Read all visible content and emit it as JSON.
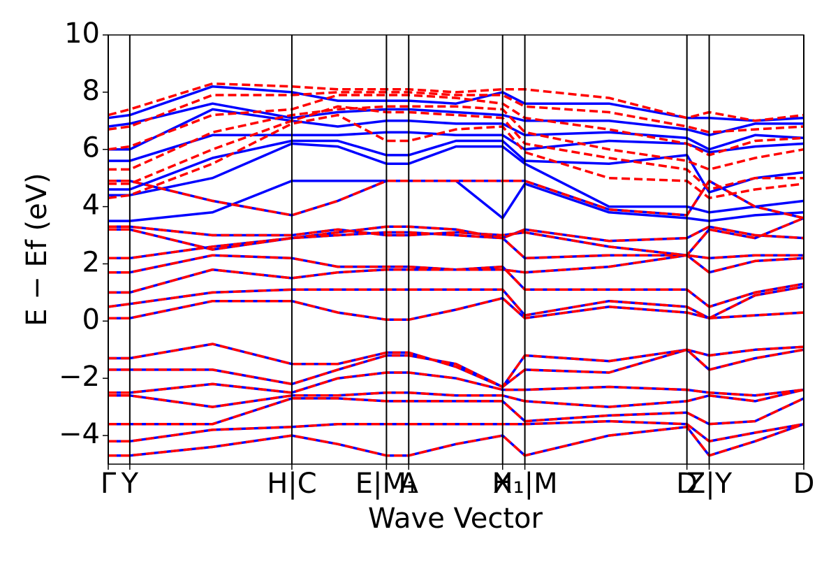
{
  "chart_data": {
    "type": "line",
    "xlabel": "Wave Vector",
    "ylabel": "E − Ef (eV)",
    "xlim": [
      0,
      10
    ],
    "ylim": [
      -5,
      10
    ],
    "yticks": [
      {
        "value": -4,
        "label": "−4"
      },
      {
        "value": -2,
        "label": "−2"
      },
      0,
      2,
      4,
      6,
      8,
      10
    ],
    "xticks": [
      {
        "value": 0,
        "label": "Γ"
      },
      {
        "value": 0.31,
        "label": "Y"
      },
      {
        "value": 2.64,
        "label": "H|C"
      },
      {
        "value": 4.0,
        "label": "E|M₁"
      },
      {
        "value": 4.32,
        "label": "A"
      },
      {
        "value": 5.67,
        "label": "X"
      },
      {
        "value": 5.99,
        "label": "H₁|M"
      },
      {
        "value": 8.32,
        "label": "D"
      },
      {
        "value": 8.64,
        "label": "Z|Y"
      },
      {
        "value": 10,
        "label": "D"
      }
    ],
    "x": [
      0,
      0.31,
      1.5,
      2.64,
      3.3,
      4.0,
      4.32,
      5.0,
      5.67,
      5.99,
      7.2,
      8.32,
      8.64,
      9.3,
      10
    ],
    "series": [
      {
        "color": "#0000ff",
        "linestyle": "solid",
        "values": [
          -4.7,
          -4.7,
          -4.4,
          -4.0,
          -4.3,
          -4.7,
          -4.7,
          -4.3,
          -4.0,
          -4.7,
          -4.0,
          -3.7,
          -4.7,
          -4.2,
          -3.6
        ]
      },
      {
        "color": "#0000ff",
        "linestyle": "solid",
        "values": [
          -4.2,
          -4.2,
          -3.8,
          -3.7,
          -3.6,
          -3.6,
          -3.6,
          -3.6,
          -3.6,
          -3.6,
          -3.5,
          -3.6,
          -4.2,
          -3.9,
          -3.6
        ]
      },
      {
        "color": "#0000ff",
        "linestyle": "solid",
        "values": [
          -3.6,
          -3.6,
          -3.6,
          -2.7,
          -2.7,
          -2.8,
          -2.8,
          -2.8,
          -2.8,
          -3.5,
          -3.3,
          -3.2,
          -3.6,
          -3.5,
          -2.7
        ]
      },
      {
        "color": "#0000ff",
        "linestyle": "solid",
        "values": [
          -2.6,
          -2.6,
          -3.0,
          -2.6,
          -2.6,
          -2.5,
          -2.5,
          -2.6,
          -2.6,
          -2.8,
          -3.0,
          -2.8,
          -2.6,
          -2.8,
          -2.4
        ]
      },
      {
        "color": "#0000ff",
        "linestyle": "solid",
        "values": [
          -2.5,
          -2.5,
          -2.2,
          -2.5,
          -2.0,
          -1.8,
          -1.8,
          -2.0,
          -2.4,
          -2.4,
          -2.3,
          -2.4,
          -2.5,
          -2.6,
          -2.4
        ]
      },
      {
        "color": "#0000ff",
        "linestyle": "solid",
        "values": [
          -1.7,
          -1.7,
          -1.7,
          -2.2,
          -1.7,
          -1.2,
          -1.2,
          -1.5,
          -2.3,
          -1.7,
          -1.8,
          -1.0,
          -1.7,
          -1.3,
          -1.0
        ]
      },
      {
        "color": "#0000ff",
        "linestyle": "solid",
        "values": [
          -1.3,
          -1.3,
          -0.8,
          -1.5,
          -1.5,
          -1.1,
          -1.1,
          -1.6,
          -2.3,
          -1.2,
          -1.4,
          -1.0,
          -1.2,
          -1.0,
          -0.9
        ]
      },
      {
        "color": "#0000ff",
        "linestyle": "solid",
        "values": [
          0.1,
          0.1,
          0.7,
          0.7,
          0.3,
          0.05,
          0.05,
          0.4,
          0.8,
          0.1,
          0.5,
          0.3,
          0.1,
          0.2,
          0.3
        ]
      },
      {
        "color": "#0000ff",
        "linestyle": "solid",
        "values": [
          0.5,
          0.6,
          1.0,
          1.1,
          1.1,
          1.1,
          1.1,
          1.1,
          1.1,
          0.2,
          0.7,
          0.5,
          0.1,
          0.9,
          1.2
        ]
      },
      {
        "color": "#0000ff",
        "linestyle": "solid",
        "values": [
          1.0,
          1.0,
          1.8,
          1.5,
          1.7,
          1.8,
          1.8,
          1.8,
          1.9,
          1.1,
          1.1,
          1.1,
          0.5,
          1.0,
          1.3
        ]
      },
      {
        "color": "#0000ff",
        "linestyle": "solid",
        "values": [
          1.7,
          1.7,
          2.3,
          2.2,
          1.9,
          1.9,
          1.9,
          1.8,
          1.8,
          1.7,
          1.9,
          2.3,
          1.7,
          2.1,
          2.2
        ]
      },
      {
        "color": "#0000ff",
        "linestyle": "solid",
        "values": [
          2.2,
          2.2,
          2.6,
          2.9,
          3.0,
          3.1,
          3.1,
          3.0,
          2.9,
          2.2,
          2.3,
          2.3,
          2.2,
          2.3,
          2.3
        ]
      },
      {
        "color": "#0000ff",
        "linestyle": "solid",
        "values": [
          3.2,
          3.2,
          2.5,
          2.9,
          3.1,
          3.3,
          3.3,
          3.2,
          2.9,
          3.2,
          2.8,
          2.9,
          3.3,
          3.0,
          2.9
        ]
      },
      {
        "color": "#0000ff",
        "linestyle": "solid",
        "values": [
          3.3,
          3.3,
          3.0,
          3.0,
          3.2,
          3.0,
          3.0,
          3.1,
          3.0,
          3.1,
          2.6,
          2.3,
          3.2,
          2.9,
          3.6
        ]
      },
      {
        "color": "#0000ff",
        "linestyle": "solid",
        "values": [
          4.9,
          4.9,
          4.2,
          3.7,
          4.2,
          4.9,
          4.9,
          4.9,
          4.9,
          4.9,
          3.9,
          3.7,
          4.9,
          4.0,
          3.6
        ]
      },
      {
        "color": "#0000ff",
        "linestyle": "solid",
        "values": [
          3.5,
          3.5,
          3.8,
          4.9,
          4.9,
          4.9,
          4.9,
          4.9,
          3.6,
          4.8,
          3.8,
          3.6,
          3.5,
          3.7,
          3.8
        ]
      },
      {
        "color": "#0000ff",
        "linestyle": "solid",
        "values": [
          4.4,
          4.4,
          5.0,
          6.2,
          6.1,
          5.5,
          5.5,
          6.1,
          6.1,
          5.5,
          4.0,
          4.0,
          3.8,
          4.0,
          4.2
        ]
      },
      {
        "color": "#0000ff",
        "linestyle": "solid",
        "values": [
          4.6,
          4.6,
          5.7,
          6.3,
          6.3,
          5.8,
          5.8,
          6.3,
          6.3,
          5.6,
          5.5,
          5.8,
          4.5,
          5.0,
          5.2
        ]
      },
      {
        "color": "#0000ff",
        "linestyle": "solid",
        "values": [
          5.6,
          5.6,
          6.5,
          6.5,
          6.5,
          6.6,
          6.6,
          6.5,
          6.5,
          6.0,
          6.3,
          6.2,
          5.9,
          6.1,
          6.2
        ]
      },
      {
        "color": "#0000ff",
        "linestyle": "solid",
        "values": [
          6.0,
          6.0,
          7.4,
          7.0,
          6.8,
          7.0,
          7.0,
          6.9,
          6.9,
          6.5,
          6.6,
          6.4,
          6.0,
          6.5,
          6.4
        ]
      },
      {
        "color": "#0000ff",
        "linestyle": "solid",
        "values": [
          6.8,
          6.9,
          7.6,
          7.1,
          7.3,
          7.4,
          7.4,
          7.3,
          7.2,
          7.0,
          7.0,
          6.7,
          6.5,
          6.9,
          6.9
        ]
      },
      {
        "color": "#0000ff",
        "linestyle": "solid",
        "values": [
          7.1,
          7.2,
          8.2,
          8.0,
          7.7,
          7.7,
          7.7,
          7.6,
          8.0,
          7.6,
          7.6,
          7.1,
          7.1,
          7.0,
          7.1
        ]
      },
      {
        "color": "#ff0000",
        "linestyle": "dashed",
        "values": [
          -4.7,
          -4.7,
          -4.4,
          -4.0,
          -4.3,
          -4.7,
          -4.7,
          -4.3,
          -4.0,
          -4.7,
          -4.0,
          -3.7,
          -4.7,
          -4.2,
          -3.6
        ]
      },
      {
        "color": "#ff0000",
        "linestyle": "dashed",
        "values": [
          -4.2,
          -4.2,
          -3.8,
          -3.7,
          -3.6,
          -3.6,
          -3.6,
          -3.6,
          -3.6,
          -3.6,
          -3.5,
          -3.6,
          -4.2,
          -3.9,
          -3.6
        ]
      },
      {
        "color": "#ff0000",
        "linestyle": "dashed",
        "values": [
          -3.6,
          -3.6,
          -3.6,
          -2.7,
          -2.7,
          -2.8,
          -2.8,
          -2.8,
          -2.8,
          -3.5,
          -3.3,
          -3.2,
          -3.6,
          -3.5,
          -2.7
        ]
      },
      {
        "color": "#ff0000",
        "linestyle": "dashed",
        "values": [
          -2.6,
          -2.6,
          -3.0,
          -2.6,
          -2.6,
          -2.5,
          -2.5,
          -2.6,
          -2.6,
          -2.8,
          -3.0,
          -2.8,
          -2.6,
          -2.8,
          -2.4
        ]
      },
      {
        "color": "#ff0000",
        "linestyle": "dashed",
        "values": [
          -2.5,
          -2.5,
          -2.2,
          -2.5,
          -2.0,
          -1.8,
          -1.8,
          -2.0,
          -2.4,
          -2.4,
          -2.3,
          -2.4,
          -2.5,
          -2.6,
          -2.4
        ]
      },
      {
        "color": "#ff0000",
        "linestyle": "dashed",
        "values": [
          -1.7,
          -1.7,
          -1.7,
          -2.2,
          -1.7,
          -1.2,
          -1.2,
          -1.5,
          -2.3,
          -1.7,
          -1.8,
          -1.0,
          -1.7,
          -1.3,
          -1.0
        ]
      },
      {
        "color": "#ff0000",
        "linestyle": "dashed",
        "values": [
          -1.3,
          -1.3,
          -0.8,
          -1.5,
          -1.5,
          -1.1,
          -1.1,
          -1.6,
          -2.3,
          -1.2,
          -1.4,
          -1.0,
          -1.2,
          -1.0,
          -0.9
        ]
      },
      {
        "color": "#ff0000",
        "linestyle": "dashed",
        "values": [
          0.1,
          0.1,
          0.7,
          0.7,
          0.3,
          0.05,
          0.05,
          0.4,
          0.8,
          0.1,
          0.5,
          0.3,
          0.1,
          0.2,
          0.3
        ]
      },
      {
        "color": "#ff0000",
        "linestyle": "dashed",
        "values": [
          0.5,
          0.6,
          1.0,
          1.1,
          1.1,
          1.1,
          1.1,
          1.1,
          1.1,
          0.2,
          0.7,
          0.5,
          0.1,
          0.9,
          1.2
        ]
      },
      {
        "color": "#ff0000",
        "linestyle": "dashed",
        "values": [
          1.0,
          1.0,
          1.8,
          1.5,
          1.7,
          1.8,
          1.8,
          1.8,
          1.9,
          1.1,
          1.1,
          1.1,
          0.5,
          1.0,
          1.3
        ]
      },
      {
        "color": "#ff0000",
        "linestyle": "dashed",
        "values": [
          1.7,
          1.7,
          2.3,
          2.2,
          1.9,
          1.9,
          1.9,
          1.8,
          1.8,
          1.7,
          1.9,
          2.3,
          1.7,
          2.1,
          2.2
        ]
      },
      {
        "color": "#ff0000",
        "linestyle": "dashed",
        "values": [
          2.2,
          2.2,
          2.6,
          2.9,
          3.0,
          3.1,
          3.1,
          3.0,
          2.9,
          2.2,
          2.3,
          2.3,
          2.2,
          2.3,
          2.3
        ]
      },
      {
        "color": "#ff0000",
        "linestyle": "dashed",
        "values": [
          3.2,
          3.2,
          2.5,
          2.9,
          3.1,
          3.3,
          3.3,
          3.2,
          2.9,
          3.2,
          2.8,
          2.9,
          3.3,
          3.0,
          2.9
        ]
      },
      {
        "color": "#ff0000",
        "linestyle": "dashed",
        "values": [
          3.3,
          3.3,
          3.0,
          3.0,
          3.2,
          3.0,
          3.0,
          3.1,
          3.0,
          3.1,
          2.6,
          2.3,
          3.2,
          2.9,
          3.6
        ]
      },
      {
        "color": "#ff0000",
        "linestyle": "dashed",
        "values": [
          4.9,
          4.9,
          4.2,
          3.7,
          4.2,
          4.9,
          4.9,
          4.9,
          4.9,
          4.9,
          3.9,
          3.7,
          4.9,
          4.0,
          3.6
        ]
      },
      {
        "color": "#ff0000",
        "linestyle": "dashed",
        "values": [
          4.3,
          4.4,
          5.5,
          6.9,
          7.2,
          6.3,
          6.3,
          6.7,
          6.8,
          5.9,
          5.0,
          4.9,
          4.3,
          4.6,
          4.8
        ]
      },
      {
        "color": "#ff0000",
        "linestyle": "dashed",
        "values": [
          4.8,
          4.8,
          6.0,
          7.0,
          7.5,
          7.3,
          7.3,
          7.2,
          7.1,
          6.2,
          5.7,
          5.3,
          4.6,
          5.0,
          5.0
        ]
      },
      {
        "color": "#ff0000",
        "linestyle": "dashed",
        "values": [
          5.3,
          5.3,
          6.6,
          7.2,
          7.4,
          7.5,
          7.5,
          7.5,
          7.4,
          6.6,
          6.0,
          5.6,
          5.3,
          5.7,
          6.0
        ]
      },
      {
        "color": "#ff0000",
        "linestyle": "dashed",
        "values": [
          6.0,
          6.1,
          7.2,
          7.4,
          7.9,
          7.9,
          7.9,
          7.8,
          7.6,
          7.1,
          6.7,
          6.2,
          5.8,
          6.3,
          6.4
        ]
      },
      {
        "color": "#ff0000",
        "linestyle": "dashed",
        "values": [
          6.7,
          6.8,
          7.9,
          7.9,
          8.0,
          8.0,
          8.0,
          7.9,
          7.9,
          7.5,
          7.3,
          6.8,
          6.6,
          6.7,
          6.8
        ]
      },
      {
        "color": "#ff0000",
        "linestyle": "dashed",
        "values": [
          7.2,
          7.4,
          8.3,
          8.2,
          8.1,
          8.1,
          8.1,
          8.0,
          8.1,
          8.1,
          7.8,
          7.1,
          7.3,
          7.0,
          7.2
        ]
      }
    ]
  }
}
